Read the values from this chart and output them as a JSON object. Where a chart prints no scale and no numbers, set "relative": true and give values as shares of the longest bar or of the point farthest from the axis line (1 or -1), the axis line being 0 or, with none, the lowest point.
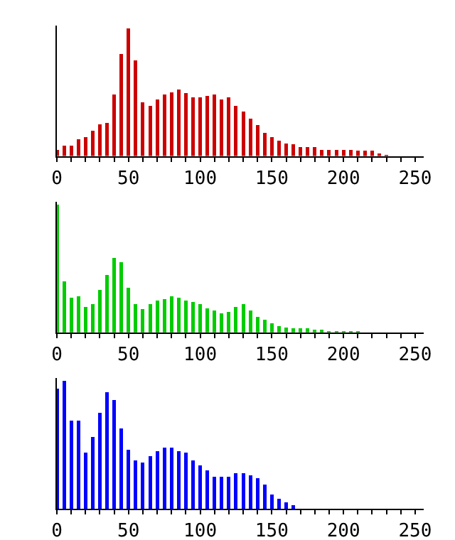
{
  "chart_data": [
    {
      "type": "bar",
      "relative": true,
      "color": "#cc0000",
      "x": [
        0,
        5,
        10,
        15,
        20,
        25,
        30,
        35,
        40,
        45,
        50,
        55,
        60,
        65,
        70,
        75,
        80,
        85,
        90,
        95,
        100,
        105,
        110,
        115,
        120,
        125,
        130,
        135,
        140,
        145,
        150,
        155,
        160,
        165,
        170,
        175,
        180,
        185,
        190,
        195,
        200,
        205,
        210,
        215,
        220,
        225,
        230,
        235,
        240,
        245,
        250
      ],
      "values": [
        0.05,
        0.08,
        0.08,
        0.13,
        0.15,
        0.2,
        0.25,
        0.26,
        0.48,
        0.8,
        1,
        0.75,
        0.42,
        0.39,
        0.44,
        0.48,
        0.5,
        0.52,
        0.49,
        0.46,
        0.46,
        0.47,
        0.48,
        0.44,
        0.46,
        0.39,
        0.35,
        0.29,
        0.24,
        0.18,
        0.15,
        0.12,
        0.1,
        0.09,
        0.07,
        0.07,
        0.07,
        0.05,
        0.05,
        0.05,
        0.05,
        0.05,
        0.04,
        0.04,
        0.04,
        0.02,
        0.01,
        0,
        0,
        0,
        0
      ],
      "xlim": [
        0,
        256
      ],
      "xticks": [
        0,
        {
          "value": 10,
          "label": null
        },
        {
          "value": 20,
          "label": null
        },
        {
          "value": 30,
          "label": null
        },
        {
          "value": 40,
          "label": null
        },
        50,
        {
          "value": 60,
          "label": null
        },
        {
          "value": 70,
          "label": null
        },
        {
          "value": 80,
          "label": null
        },
        {
          "value": 90,
          "label": null
        },
        100,
        {
          "value": 110,
          "label": null
        },
        {
          "value": 120,
          "label": null
        },
        {
          "value": 130,
          "label": null
        },
        {
          "value": 140,
          "label": null
        },
        150,
        {
          "value": 160,
          "label": null
        },
        {
          "value": 170,
          "label": null
        },
        {
          "value": 180,
          "label": null
        },
        {
          "value": 190,
          "label": null
        },
        200,
        {
          "value": 210,
          "label": null
        },
        {
          "value": 220,
          "label": null
        },
        {
          "value": 230,
          "label": null
        },
        {
          "value": 240,
          "label": null
        },
        250
      ],
      "tick_labels": "x",
      "grid": false
    },
    {
      "type": "bar",
      "relative": true,
      "color": "#00cc00",
      "x": [
        0,
        5,
        10,
        15,
        20,
        25,
        30,
        35,
        40,
        45,
        50,
        55,
        60,
        65,
        70,
        75,
        80,
        85,
        90,
        95,
        100,
        105,
        110,
        115,
        120,
        125,
        130,
        135,
        140,
        145,
        150,
        155,
        160,
        165,
        170,
        175,
        180,
        185,
        190,
        195,
        200,
        205,
        210,
        215,
        220,
        225,
        230,
        235,
        240,
        245,
        250
      ],
      "values": [
        1,
        0.4,
        0.27,
        0.28,
        0.2,
        0.22,
        0.33,
        0.45,
        0.58,
        0.55,
        0.35,
        0.22,
        0.18,
        0.22,
        0.25,
        0.26,
        0.28,
        0.27,
        0.25,
        0.24,
        0.22,
        0.19,
        0.17,
        0.15,
        0.16,
        0.2,
        0.22,
        0.17,
        0.12,
        0.1,
        0.07,
        0.05,
        0.04,
        0.03,
        0.03,
        0.03,
        0.02,
        0.02,
        0.01,
        0.01,
        0.01,
        0.01,
        0.01,
        0,
        0,
        0,
        0,
        0,
        0,
        0,
        0
      ],
      "xlim": [
        0,
        256
      ],
      "xticks": [
        0,
        {
          "value": 10,
          "label": null
        },
        {
          "value": 20,
          "label": null
        },
        {
          "value": 30,
          "label": null
        },
        {
          "value": 40,
          "label": null
        },
        50,
        {
          "value": 60,
          "label": null
        },
        {
          "value": 70,
          "label": null
        },
        {
          "value": 80,
          "label": null
        },
        {
          "value": 90,
          "label": null
        },
        100,
        {
          "value": 110,
          "label": null
        },
        {
          "value": 120,
          "label": null
        },
        {
          "value": 130,
          "label": null
        },
        {
          "value": 140,
          "label": null
        },
        150,
        {
          "value": 160,
          "label": null
        },
        {
          "value": 170,
          "label": null
        },
        {
          "value": 180,
          "label": null
        },
        {
          "value": 190,
          "label": null
        },
        200,
        {
          "value": 210,
          "label": null
        },
        {
          "value": 220,
          "label": null
        },
        {
          "value": 230,
          "label": null
        },
        {
          "value": 240,
          "label": null
        },
        250
      ],
      "tick_labels": "x",
      "grid": false
    },
    {
      "type": "bar",
      "relative": true,
      "color": "#0000ff",
      "x": [
        0,
        5,
        10,
        15,
        20,
        25,
        30,
        35,
        40,
        45,
        50,
        55,
        60,
        65,
        70,
        75,
        80,
        85,
        90,
        95,
        100,
        105,
        110,
        115,
        120,
        125,
        130,
        135,
        140,
        145,
        150,
        155,
        160,
        165,
        170,
        175,
        180,
        185,
        190,
        195,
        200,
        205,
        210,
        215,
        220,
        225,
        230,
        235,
        240,
        245,
        250
      ],
      "values": [
        0.94,
        1,
        0.69,
        0.69,
        0.44,
        0.56,
        0.75,
        0.91,
        0.85,
        0.63,
        0.46,
        0.38,
        0.36,
        0.41,
        0.45,
        0.48,
        0.48,
        0.45,
        0.44,
        0.38,
        0.34,
        0.3,
        0.25,
        0.25,
        0.25,
        0.28,
        0.28,
        0.26,
        0.24,
        0.19,
        0.11,
        0.08,
        0.05,
        0.03,
        0,
        0,
        0,
        0,
        0,
        0,
        0,
        0,
        0,
        0,
        0,
        0,
        0,
        0,
        0,
        0,
        0
      ],
      "xlim": [
        0,
        256
      ],
      "xticks": [
        0,
        {
          "value": 10,
          "label": null
        },
        {
          "value": 20,
          "label": null
        },
        {
          "value": 30,
          "label": null
        },
        {
          "value": 40,
          "label": null
        },
        50,
        {
          "value": 60,
          "label": null
        },
        {
          "value": 70,
          "label": null
        },
        {
          "value": 80,
          "label": null
        },
        {
          "value": 90,
          "label": null
        },
        100,
        {
          "value": 110,
          "label": null
        },
        {
          "value": 120,
          "label": null
        },
        {
          "value": 130,
          "label": null
        },
        {
          "value": 140,
          "label": null
        },
        150,
        {
          "value": 160,
          "label": null
        },
        {
          "value": 170,
          "label": null
        },
        {
          "value": 180,
          "label": null
        },
        {
          "value": 190,
          "label": null
        },
        200,
        {
          "value": 210,
          "label": null
        },
        {
          "value": 220,
          "label": null
        },
        {
          "value": 230,
          "label": null
        },
        {
          "value": 240,
          "label": null
        },
        250
      ],
      "tick_labels": "x",
      "grid": false
    }
  ]
}
